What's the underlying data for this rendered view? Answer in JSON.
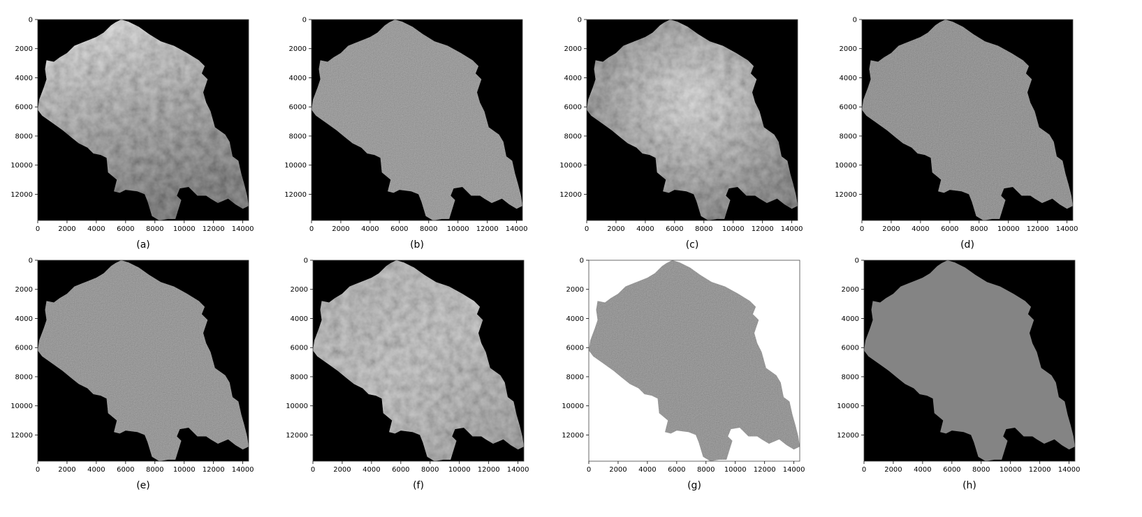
{
  "chart_data": [
    {
      "type": "heatmap",
      "title": "(a)",
      "xlim": [
        0,
        14400
      ],
      "ylim": [
        13800,
        0
      ],
      "xticks": [
        0,
        2000,
        4000,
        6000,
        8000,
        10000,
        12000,
        14000
      ],
      "yticks": [
        0,
        2000,
        4000,
        6000,
        8000,
        10000,
        12000
      ],
      "background": "#000000",
      "region_shading": "bright-to-dark gradient (north bright)"
    },
    {
      "type": "heatmap",
      "title": "(b)",
      "xlim": [
        0,
        14400
      ],
      "ylim": [
        13800,
        0
      ],
      "xticks": [
        0,
        2000,
        4000,
        6000,
        8000,
        10000,
        12000,
        14000
      ],
      "yticks": [
        0,
        2000,
        4000,
        6000,
        8000,
        10000,
        12000
      ],
      "background": "#000000",
      "region_shading": "uniform mid grey with speckle"
    },
    {
      "type": "heatmap",
      "title": "(c)",
      "xlim": [
        0,
        14400
      ],
      "ylim": [
        13800,
        0
      ],
      "xticks": [
        0,
        2000,
        4000,
        6000,
        8000,
        10000,
        12000,
        14000
      ],
      "yticks": [
        0,
        2000,
        4000,
        6000,
        8000,
        10000,
        12000
      ],
      "background": "#000000",
      "region_shading": "high-contrast terrain texture"
    },
    {
      "type": "heatmap",
      "title": "(d)",
      "xlim": [
        0,
        14400
      ],
      "ylim": [
        13800,
        0
      ],
      "xticks": [
        0,
        2000,
        4000,
        6000,
        8000,
        10000,
        12000,
        14000
      ],
      "yticks": [
        0,
        2000,
        4000,
        6000,
        8000,
        10000,
        12000
      ],
      "background": "#000000",
      "region_shading": "fine grey texture"
    },
    {
      "type": "heatmap",
      "title": "(e)",
      "xlim": [
        0,
        14400
      ],
      "ylim": [
        13800,
        0
      ],
      "xticks": [
        0,
        2000,
        4000,
        6000,
        8000,
        10000,
        12000,
        14000
      ],
      "yticks": [
        0,
        2000,
        4000,
        6000,
        8000,
        10000,
        12000
      ],
      "background": "#000000",
      "region_shading": "embossed relief texture"
    },
    {
      "type": "heatmap",
      "title": "(f)",
      "xlim": [
        0,
        14400
      ],
      "ylim": [
        13800,
        0
      ],
      "xticks": [
        0,
        2000,
        4000,
        6000,
        8000,
        10000,
        12000,
        14000
      ],
      "yticks": [
        0,
        2000,
        4000,
        6000,
        8000,
        10000,
        12000
      ],
      "background": "#000000",
      "region_shading": "patchy land-cover texture"
    },
    {
      "type": "heatmap",
      "title": "(g)",
      "xlim": [
        0,
        14400
      ],
      "ylim": [
        13800,
        0
      ],
      "xticks": [
        0,
        2000,
        4000,
        6000,
        8000,
        10000,
        12000,
        14000
      ],
      "yticks": [
        0,
        2000,
        4000,
        6000,
        8000,
        10000,
        12000
      ],
      "background": "#ffffff",
      "region_shading": "uniform grey with dark spots"
    },
    {
      "type": "heatmap",
      "title": "(h)",
      "xlim": [
        0,
        14400
      ],
      "ylim": [
        13800,
        0
      ],
      "xticks": [
        0,
        2000,
        4000,
        6000,
        8000,
        10000,
        12000,
        14000
      ],
      "yticks": [
        0,
        2000,
        4000,
        6000,
        8000,
        10000,
        12000
      ],
      "background": "#000000",
      "region_shading": "uniform flat grey"
    }
  ]
}
